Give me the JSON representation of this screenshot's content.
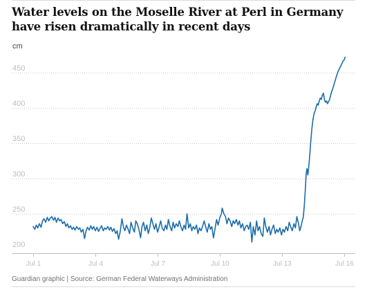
{
  "chart_data": {
    "type": "line",
    "title": "Water levels on the Moselle River at Perl in Germany have risen dramatically in recent days",
    "ylabel": "cm",
    "xlabel": "",
    "ylim": [
      200,
      475
    ],
    "xlim": [
      0,
      15.47
    ],
    "grid": true,
    "legend": "none",
    "y_ticks": [
      {
        "value": 450,
        "label": "450"
      },
      {
        "value": 400,
        "label": "400"
      },
      {
        "value": 350,
        "label": "350"
      },
      {
        "value": 300,
        "label": "300"
      },
      {
        "value": 250,
        "label": "250"
      },
      {
        "value": 200,
        "label": "200"
      }
    ],
    "x_ticks": [
      {
        "value": 0,
        "label": "Jul 1"
      },
      {
        "value": 3,
        "label": "Jul 4"
      },
      {
        "value": 6,
        "label": "Jul 7"
      },
      {
        "value": 9,
        "label": "Jul 10"
      },
      {
        "value": 12,
        "label": "Jul 13"
      },
      {
        "value": 15,
        "label": "Jul 16"
      }
    ],
    "series": [
      {
        "name": "",
        "color": "#1a6ca8",
        "points": [
          [
            0.0,
            232
          ],
          [
            0.08,
            228
          ],
          [
            0.15,
            234
          ],
          [
            0.22,
            230
          ],
          [
            0.3,
            236
          ],
          [
            0.38,
            231
          ],
          [
            0.45,
            240
          ],
          [
            0.52,
            243
          ],
          [
            0.6,
            238
          ],
          [
            0.68,
            245
          ],
          [
            0.75,
            240
          ],
          [
            0.82,
            244
          ],
          [
            0.9,
            246
          ],
          [
            0.98,
            241
          ],
          [
            1.05,
            245
          ],
          [
            1.12,
            238
          ],
          [
            1.2,
            244
          ],
          [
            1.28,
            240
          ],
          [
            1.35,
            242
          ],
          [
            1.42,
            236
          ],
          [
            1.5,
            239
          ],
          [
            1.58,
            232
          ],
          [
            1.65,
            236
          ],
          [
            1.72,
            230
          ],
          [
            1.8,
            233
          ],
          [
            1.88,
            228
          ],
          [
            1.95,
            231
          ],
          [
            2.02,
            227
          ],
          [
            2.1,
            232
          ],
          [
            2.18,
            228
          ],
          [
            2.25,
            230
          ],
          [
            2.32,
            224
          ],
          [
            2.4,
            228
          ],
          [
            2.48,
            215
          ],
          [
            2.55,
            226
          ],
          [
            2.62,
            231
          ],
          [
            2.7,
            227
          ],
          [
            2.78,
            233
          ],
          [
            2.85,
            228
          ],
          [
            2.92,
            232
          ],
          [
            3.0,
            226
          ],
          [
            3.08,
            231
          ],
          [
            3.15,
            225
          ],
          [
            3.22,
            229
          ],
          [
            3.3,
            233
          ],
          [
            3.38,
            226
          ],
          [
            3.45,
            230
          ],
          [
            3.52,
            228
          ],
          [
            3.6,
            232
          ],
          [
            3.68,
            227
          ],
          [
            3.75,
            231
          ],
          [
            3.82,
            225
          ],
          [
            3.9,
            229
          ],
          [
            3.98,
            222
          ],
          [
            4.05,
            226
          ],
          [
            4.12,
            214
          ],
          [
            4.2,
            225
          ],
          [
            4.28,
            243
          ],
          [
            4.35,
            232
          ],
          [
            4.42,
            226
          ],
          [
            4.5,
            234
          ],
          [
            4.58,
            228
          ],
          [
            4.65,
            222
          ],
          [
            4.72,
            238
          ],
          [
            4.8,
            230
          ],
          [
            4.88,
            224
          ],
          [
            4.95,
            240
          ],
          [
            5.02,
            236
          ],
          [
            5.1,
            228
          ],
          [
            5.18,
            216
          ],
          [
            5.25,
            232
          ],
          [
            5.32,
            238
          ],
          [
            5.4,
            226
          ],
          [
            5.48,
            234
          ],
          [
            5.55,
            222
          ],
          [
            5.62,
            230
          ],
          [
            5.7,
            244
          ],
          [
            5.78,
            235
          ],
          [
            5.85,
            228
          ],
          [
            5.92,
            236
          ],
          [
            6.0,
            224
          ],
          [
            6.08,
            232
          ],
          [
            6.15,
            240
          ],
          [
            6.22,
            230
          ],
          [
            6.3,
            226
          ],
          [
            6.38,
            234
          ],
          [
            6.45,
            228
          ],
          [
            6.52,
            242
          ],
          [
            6.6,
            232
          ],
          [
            6.68,
            226
          ],
          [
            6.75,
            238
          ],
          [
            6.82,
            230
          ],
          [
            6.9,
            236
          ],
          [
            6.98,
            232
          ],
          [
            7.05,
            240
          ],
          [
            7.12,
            232
          ],
          [
            7.2,
            226
          ],
          [
            7.28,
            234
          ],
          [
            7.35,
            228
          ],
          [
            7.42,
            250
          ],
          [
            7.5,
            230
          ],
          [
            7.58,
            236
          ],
          [
            7.65,
            226
          ],
          [
            7.72,
            232
          ],
          [
            7.8,
            228
          ],
          [
            7.88,
            234
          ],
          [
            7.95,
            222
          ],
          [
            8.02,
            230
          ],
          [
            8.1,
            226
          ],
          [
            8.18,
            233
          ],
          [
            8.25,
            240
          ],
          [
            8.32,
            232
          ],
          [
            8.4,
            224
          ],
          [
            8.48,
            236
          ],
          [
            8.55,
            228
          ],
          [
            8.62,
            232
          ],
          [
            8.7,
            216
          ],
          [
            8.78,
            230
          ],
          [
            8.85,
            242
          ],
          [
            8.92,
            234
          ],
          [
            9.0,
            244
          ],
          [
            9.08,
            250
          ],
          [
            9.12,
            258
          ],
          [
            9.2,
            250
          ],
          [
            9.28,
            246
          ],
          [
            9.35,
            236
          ],
          [
            9.42,
            244
          ],
          [
            9.5,
            240
          ],
          [
            9.58,
            232
          ],
          [
            9.65,
            240
          ],
          [
            9.72,
            236
          ],
          [
            9.8,
            242
          ],
          [
            9.88,
            234
          ],
          [
            9.95,
            240
          ],
          [
            10.02,
            230
          ],
          [
            10.1,
            236
          ],
          [
            10.18,
            226
          ],
          [
            10.25,
            232
          ],
          [
            10.32,
            234
          ],
          [
            10.4,
            228
          ],
          [
            10.48,
            238
          ],
          [
            10.55,
            210
          ],
          [
            10.62,
            232
          ],
          [
            10.7,
            220
          ],
          [
            10.78,
            240
          ],
          [
            10.85,
            226
          ],
          [
            10.92,
            232
          ],
          [
            11.0,
            222
          ],
          [
            11.08,
            218
          ],
          [
            11.15,
            244
          ],
          [
            11.22,
            232
          ],
          [
            11.3,
            224
          ],
          [
            11.38,
            232
          ],
          [
            11.45,
            220
          ],
          [
            11.52,
            228
          ],
          [
            11.6,
            234
          ],
          [
            11.68,
            222
          ],
          [
            11.75,
            228
          ],
          [
            11.82,
            224
          ],
          [
            11.9,
            230
          ],
          [
            11.98,
            220
          ],
          [
            12.05,
            228
          ],
          [
            12.12,
            224
          ],
          [
            12.2,
            232
          ],
          [
            12.28,
            226
          ],
          [
            12.35,
            238
          ],
          [
            12.42,
            232
          ],
          [
            12.5,
            226
          ],
          [
            12.58,
            236
          ],
          [
            12.65,
            230
          ],
          [
            12.72,
            246
          ],
          [
            12.8,
            236
          ],
          [
            12.86,
            226
          ],
          [
            12.92,
            232
          ],
          [
            12.98,
            240
          ],
          [
            13.03,
            245
          ],
          [
            13.08,
            262
          ],
          [
            13.13,
            285
          ],
          [
            13.17,
            307
          ],
          [
            13.21,
            314
          ],
          [
            13.25,
            305
          ],
          [
            13.3,
            318
          ],
          [
            13.35,
            336
          ],
          [
            13.4,
            356
          ],
          [
            13.45,
            372
          ],
          [
            13.5,
            384
          ],
          [
            13.55,
            392
          ],
          [
            13.6,
            396
          ],
          [
            13.65,
            401
          ],
          [
            13.7,
            406
          ],
          [
            13.75,
            404
          ],
          [
            13.8,
            410
          ],
          [
            13.85,
            414
          ],
          [
            13.9,
            412
          ],
          [
            13.95,
            418
          ],
          [
            14.0,
            421
          ],
          [
            14.05,
            412
          ],
          [
            14.1,
            408
          ],
          [
            14.15,
            410
          ],
          [
            14.2,
            406
          ],
          [
            14.25,
            409
          ],
          [
            14.3,
            412
          ],
          [
            14.35,
            418
          ],
          [
            14.4,
            423
          ],
          [
            14.47,
            429
          ],
          [
            14.55,
            437
          ],
          [
            14.62,
            444
          ],
          [
            14.7,
            451
          ],
          [
            14.78,
            456
          ],
          [
            14.86,
            461
          ],
          [
            14.94,
            466
          ],
          [
            15.0,
            468
          ],
          [
            15.05,
            472
          ]
        ]
      }
    ],
    "source": "Guardian graphic | Source: German Federal Waterways Administration"
  },
  "colors": {
    "line": "#1a6ca8",
    "grid": "#c8c8c8",
    "axis": "#bfbfbf",
    "tick_label": "#bdbdbd",
    "title": "#121212",
    "footer": "#707070"
  }
}
